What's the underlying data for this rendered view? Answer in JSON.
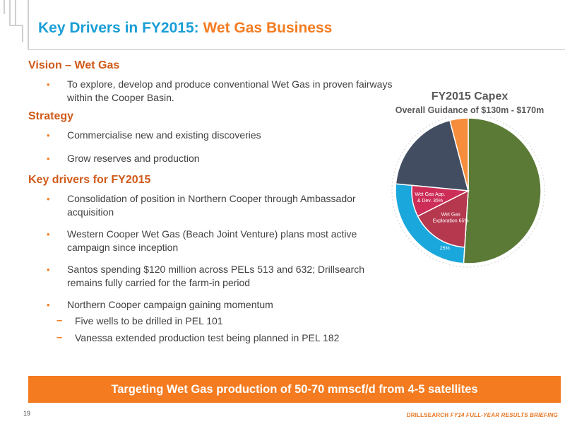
{
  "slide": {
    "title_main": "Key Drivers in FY2015:",
    "title_accent": "Wet Gas Business",
    "page_number": "19",
    "footer_brand": "DRILLSEARCH",
    "footer_rest": "FY14 FULL-YEAR RESULTS BRIEFING",
    "banner": "Targeting Wet Gas production of 50-70 mmscf/d from 4-5 satellites"
  },
  "vision": {
    "heading": "Vision – Wet Gas",
    "bullets": [
      "To explore, develop and produce conventional Wet Gas in proven fairways within the Cooper Basin."
    ]
  },
  "strategy": {
    "heading": "Strategy",
    "bullets": [
      "Commercialise new and existing discoveries",
      "Grow reserves and production"
    ]
  },
  "drivers": {
    "heading": "Key drivers for FY2015",
    "bullets": [
      "Consolidation of position in Northern Cooper through Ambassador acquisition",
      "Western Cooper Wet Gas (Beach Joint Venture) plans most active campaign since inception",
      "Santos spending $120 million across PELs 513 and 632; Drillsearch remains fully carried for the farm-in period",
      "Northern Cooper campaign gaining momentum"
    ],
    "sub_bullets": [
      "Five wells to be drilled in PEL 101",
      "Vanessa extended production test being planned in PEL 182"
    ]
  },
  "colors": {
    "accent_orange": "#f47b20",
    "title_blue": "#1a9ed6",
    "olive": "#5b7a36",
    "crimson": "#b5384e",
    "slate": "#434d61",
    "cyan": "#1aa7dc"
  },
  "chart_data": {
    "type": "pie",
    "title": "FY2015 Capex",
    "subtitle": "Overall Guidance of $130m - $170m",
    "slices": [
      {
        "label": "",
        "value": 50,
        "color": "#5b7a36"
      },
      {
        "label": "",
        "value": 25,
        "color": "#1aa7dc"
      },
      {
        "label": "",
        "value": 19,
        "color": "#434d61"
      },
      {
        "label": "",
        "value": 4,
        "color": "#f58d3c"
      }
    ],
    "inner_slices": [
      {
        "label": "Wet Gas Exploration 65%",
        "value": 65,
        "color": "#b5384e"
      },
      {
        "label": "Wet Gas App. & Dev. 35%",
        "value": 35,
        "color": "#cc2e58"
      }
    ],
    "data_labels": [
      "25%",
      "Wet Gas App. & Dev. 35%",
      "Wet Gas Exploration 65%"
    ]
  }
}
